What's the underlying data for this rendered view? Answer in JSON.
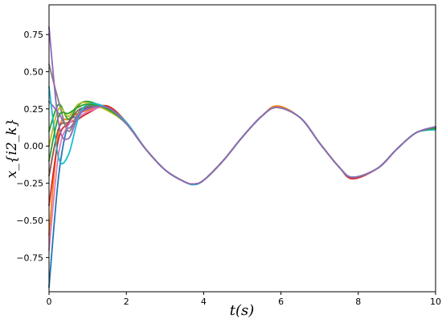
{
  "chart_data": {
    "type": "line",
    "title": "",
    "xlabel": "t(s)",
    "ylabel": "x_{i2_k}",
    "xlim": [
      0,
      10
    ],
    "ylim": [
      -0.98,
      0.95
    ],
    "grid": false,
    "x_ticks": [
      0,
      2,
      4,
      6,
      8,
      10
    ],
    "y_ticks": [
      -0.75,
      -0.5,
      -0.25,
      0.0,
      0.25,
      0.5,
      0.75
    ],
    "x_tick_labels": [
      "0",
      "2",
      "4",
      "6",
      "8",
      "10"
    ],
    "y_tick_labels": [
      "−0.75",
      "−0.50",
      "−0.25",
      "0.00",
      "0.25",
      "0.50",
      "0.75"
    ],
    "x": [
      0,
      0.25,
      0.5,
      0.75,
      1.0,
      1.5,
      2.0,
      2.5,
      3.0,
      3.5,
      3.75,
      4.0,
      4.5,
      5.0,
      5.5,
      5.9,
      6.5,
      7.0,
      7.5,
      7.85,
      8.5,
      9.0,
      9.5,
      10.0
    ],
    "consensus_y": [
      0.0,
      0.05,
      0.12,
      0.19,
      0.26,
      0.25,
      0.15,
      -0.02,
      -0.16,
      -0.24,
      -0.255,
      -0.23,
      -0.1,
      0.06,
      0.2,
      0.26,
      0.19,
      0.02,
      -0.14,
      -0.21,
      -0.15,
      -0.02,
      0.09,
      0.125
    ],
    "series": [
      {
        "color": "#1f77b4",
        "values": [
          -0.95,
          -0.2,
          0.15,
          0.2,
          0.26,
          0.26,
          0.15,
          -0.02,
          -0.16,
          -0.24,
          -0.255,
          -0.23,
          -0.1,
          0.06,
          0.2,
          0.26,
          0.19,
          0.02,
          -0.14,
          -0.21,
          -0.15,
          -0.02,
          0.09,
          0.12
        ]
      },
      {
        "color": "#ff7f0e",
        "values": [
          -0.6,
          0.1,
          0.18,
          0.22,
          0.24,
          0.27,
          0.15,
          -0.02,
          -0.16,
          -0.24,
          -0.255,
          -0.23,
          -0.1,
          0.06,
          0.2,
          0.27,
          0.19,
          0.02,
          -0.14,
          -0.21,
          -0.15,
          -0.02,
          0.09,
          0.12
        ]
      },
      {
        "color": "#2ca02c",
        "values": [
          0.1,
          0.28,
          0.18,
          0.27,
          0.3,
          0.25,
          0.15,
          -0.02,
          -0.16,
          -0.24,
          -0.255,
          -0.23,
          -0.1,
          0.06,
          0.2,
          0.26,
          0.19,
          0.02,
          -0.14,
          -0.21,
          -0.15,
          -0.02,
          0.09,
          0.13
        ]
      },
      {
        "color": "#d62728",
        "values": [
          -0.4,
          0.05,
          0.15,
          0.18,
          0.22,
          0.27,
          0.16,
          -0.02,
          -0.16,
          -0.24,
          -0.255,
          -0.23,
          -0.1,
          0.06,
          0.2,
          0.26,
          0.19,
          0.02,
          -0.14,
          -0.22,
          -0.15,
          -0.02,
          0.09,
          0.125
        ]
      },
      {
        "color": "#9467bd",
        "values": [
          0.3,
          0.22,
          0.12,
          0.2,
          0.25,
          0.26,
          0.15,
          -0.02,
          -0.16,
          -0.24,
          -0.255,
          -0.23,
          -0.1,
          0.06,
          0.2,
          0.26,
          0.19,
          0.02,
          -0.14,
          -0.21,
          -0.15,
          -0.02,
          0.09,
          0.13
        ]
      },
      {
        "color": "#8c564b",
        "values": [
          -0.2,
          0.12,
          0.16,
          0.24,
          0.26,
          0.25,
          0.15,
          -0.02,
          -0.16,
          -0.24,
          -0.255,
          -0.23,
          -0.1,
          0.06,
          0.2,
          0.26,
          0.19,
          0.02,
          -0.14,
          -0.21,
          -0.15,
          -0.02,
          0.09,
          0.12
        ]
      },
      {
        "color": "#e377c2",
        "values": [
          -0.7,
          -0.05,
          0.14,
          0.19,
          0.23,
          0.26,
          0.15,
          -0.02,
          -0.16,
          -0.24,
          -0.255,
          -0.23,
          -0.1,
          0.06,
          0.2,
          0.26,
          0.19,
          0.02,
          -0.14,
          -0.21,
          -0.15,
          -0.02,
          0.09,
          0.125
        ]
      },
      {
        "color": "#7f7f7f",
        "values": [
          0.55,
          0.3,
          0.1,
          0.22,
          0.27,
          0.25,
          0.15,
          -0.02,
          -0.16,
          -0.24,
          -0.255,
          -0.23,
          -0.1,
          0.06,
          0.2,
          0.26,
          0.19,
          0.02,
          -0.14,
          -0.21,
          -0.15,
          -0.02,
          0.09,
          0.12
        ]
      },
      {
        "color": "#bcbd22",
        "values": [
          0.0,
          0.25,
          0.2,
          0.28,
          0.29,
          0.24,
          0.15,
          -0.02,
          -0.16,
          -0.24,
          -0.255,
          -0.23,
          -0.1,
          0.06,
          0.2,
          0.26,
          0.19,
          0.02,
          -0.14,
          -0.21,
          -0.15,
          -0.02,
          0.09,
          0.125
        ]
      },
      {
        "color": "#17becf",
        "values": [
          0.4,
          -0.08,
          -0.06,
          0.18,
          0.28,
          0.26,
          0.16,
          -0.02,
          -0.16,
          -0.24,
          -0.26,
          -0.23,
          -0.1,
          0.06,
          0.2,
          0.26,
          0.19,
          0.02,
          -0.14,
          -0.21,
          -0.15,
          -0.02,
          0.09,
          0.11
        ]
      },
      {
        "color": "#2ca02c",
        "values": [
          -0.1,
          0.2,
          0.22,
          0.26,
          0.28,
          0.25,
          0.15,
          -0.02,
          -0.16,
          -0.24,
          -0.255,
          -0.23,
          -0.1,
          0.06,
          0.2,
          0.26,
          0.19,
          0.02,
          -0.14,
          -0.21,
          -0.15,
          -0.02,
          0.09,
          0.12
        ]
      },
      {
        "color": "#9467bd",
        "values": [
          0.8,
          0.15,
          0.05,
          0.2,
          0.25,
          0.26,
          0.15,
          -0.02,
          -0.16,
          -0.24,
          -0.255,
          -0.23,
          -0.1,
          0.06,
          0.2,
          0.26,
          0.19,
          0.02,
          -0.14,
          -0.21,
          -0.15,
          -0.02,
          0.09,
          0.13
        ]
      }
    ]
  }
}
